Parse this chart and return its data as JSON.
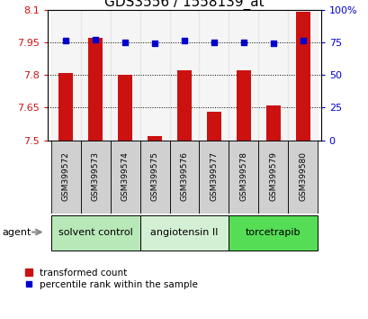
{
  "title": "GDS3556 / 1558139_at",
  "samples": [
    "GSM399572",
    "GSM399573",
    "GSM399574",
    "GSM399575",
    "GSM399576",
    "GSM399577",
    "GSM399578",
    "GSM399579",
    "GSM399580"
  ],
  "bar_values": [
    7.81,
    7.97,
    7.8,
    7.52,
    7.82,
    7.63,
    7.82,
    7.66,
    8.09
  ],
  "scatter_values": [
    76,
    77,
    75,
    74,
    76,
    75,
    75,
    74,
    76
  ],
  "bar_color": "#cc1111",
  "scatter_color": "#0000cc",
  "ylim_left": [
    7.5,
    8.1
  ],
  "ylim_right": [
    0,
    100
  ],
  "yticks_left": [
    7.5,
    7.65,
    7.8,
    7.95,
    8.1
  ],
  "ytick_labels_left": [
    "7.5",
    "7.65",
    "7.8",
    "7.95",
    "8.1"
  ],
  "yticks_right": [
    0,
    25,
    50,
    75,
    100
  ],
  "ytick_labels_right": [
    "0",
    "25",
    "50",
    "75",
    "100%"
  ],
  "hlines": [
    7.65,
    7.8,
    7.95
  ],
  "groups": [
    {
      "label": "solvent control",
      "start": 0,
      "end": 3,
      "color": "#b8e8b8"
    },
    {
      "label": "angiotensin II",
      "start": 3,
      "end": 6,
      "color": "#d4f0d4"
    },
    {
      "label": "torcetrapib",
      "start": 6,
      "end": 9,
      "color": "#55dd55"
    }
  ],
  "agent_label": "agent",
  "legend_bar_label": "transformed count",
  "legend_scatter_label": "percentile rank within the sample",
  "bar_width": 0.5,
  "title_fontsize": 11,
  "axis_tick_fontsize": 8,
  "sample_tick_fontsize": 6.5,
  "group_label_fontsize": 8
}
